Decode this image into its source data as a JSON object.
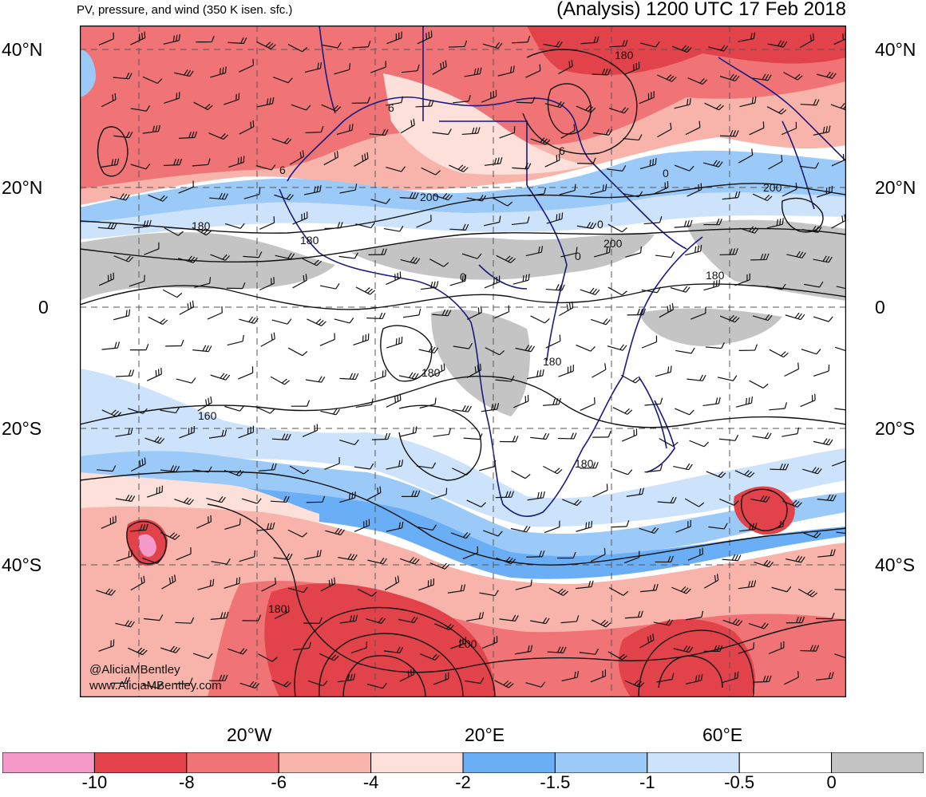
{
  "header": {
    "left_title": "PV, pressure, and wind (350 K isen. sfc.)",
    "right_title": "(Analysis) 1200 UTC 17 Feb 2018"
  },
  "axes": {
    "lat_labels_left": [
      "40°N",
      "20°N",
      "0",
      "20°S",
      "40°S"
    ],
    "lat_labels_right": [
      "40°N",
      "20°N",
      "0",
      "20°S",
      "40°S"
    ],
    "lon_labels": [
      "20°W",
      "20°E",
      "60°E"
    ],
    "lat_values": [
      40,
      20,
      0,
      -20,
      -40
    ],
    "lon_values": [
      -20,
      20,
      60
    ]
  },
  "contour_labels": [
    {
      "text": "180"
    },
    {
      "text": "6"
    },
    {
      "text": "6"
    },
    {
      "text": "6"
    },
    {
      "text": "0"
    },
    {
      "text": "200"
    },
    {
      "text": "200"
    },
    {
      "text": "0"
    },
    {
      "text": "180"
    },
    {
      "text": "180"
    },
    {
      "text": "0"
    },
    {
      "text": "200"
    },
    {
      "text": "0"
    },
    {
      "text": "180"
    },
    {
      "text": "180"
    },
    {
      "text": "180"
    },
    {
      "text": "160"
    },
    {
      "text": "180"
    },
    {
      "text": "180"
    },
    {
      "text": "200"
    }
  ],
  "credits": {
    "handle": "@AliciaMBentley",
    "site": "www.AliciaMBentley.com"
  },
  "colorbar": {
    "colors": [
      "#f59ac8",
      "#e24249",
      "#f07476",
      "#f8b4ab",
      "#fce0d9",
      "#6aaef6",
      "#9ccaf8",
      "#cce3fb",
      "#ffffff",
      "#c4c4c4"
    ],
    "labels": [
      "-10",
      "-8",
      "-6",
      "-4",
      "-2",
      "-1.5",
      "-1",
      "-0.5",
      "0"
    ]
  },
  "palette": {
    "deep_red": "#e24249",
    "red": "#f07476",
    "salmon": "#f8b4ab",
    "pink_light": "#fce0d9",
    "blue": "#6aaef6",
    "blue_mid": "#9ccaf8",
    "blue_light": "#cce3fb",
    "gray": "#c4c4c4",
    "border_navy": "#1a1a80"
  }
}
